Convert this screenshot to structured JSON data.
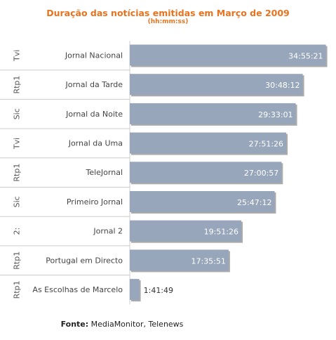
{
  "title": "Duração das notícias emitidas em Março de 2009",
  "subtitle": "(hh:mm:ss)",
  "source": {
    "label": "Fonte:",
    "text": "MediaMonitor, Telenews"
  },
  "colors": {
    "bar": "#97a6ba",
    "bar_shadow": "#666666",
    "accent": "#e8731e",
    "grid": "#cccccc"
  },
  "chart_data": {
    "type": "bar",
    "orientation": "horizontal",
    "title": "Duração das notícias emitidas em Março de 2009",
    "subtitle": "(hh:mm:ss)",
    "xlim": [
      0,
      35.6
    ],
    "grid": "horizontal-separators",
    "categories": [
      {
        "channel": "Tvi",
        "program": "Jornal Nacional"
      },
      {
        "channel": "Rtp1",
        "program": "Jornal da Tarde"
      },
      {
        "channel": "Sic",
        "program": "Jornal da Noite"
      },
      {
        "channel": "Tvi",
        "program": "Jornal da Uma"
      },
      {
        "channel": "Rtp1",
        "program": "TeleJornal"
      },
      {
        "channel": "Sic",
        "program": "Primeiro Jornal"
      },
      {
        "channel": "2:",
        "program": "Jornal 2"
      },
      {
        "channel": "Rtp1",
        "program": "Portugal em Directo"
      },
      {
        "channel": "Rtp1",
        "program": "As Escolhas de Marcelo"
      }
    ],
    "labels": [
      "34:55:21",
      "30:48:12",
      "29:33:01",
      "27:51:26",
      "27:00:57",
      "25:47:12",
      "19:51:26",
      "17:35:51",
      "1:41:49"
    ],
    "values": [
      34.92,
      30.8,
      29.55,
      27.86,
      27.02,
      25.79,
      19.86,
      17.6,
      1.7
    ]
  }
}
